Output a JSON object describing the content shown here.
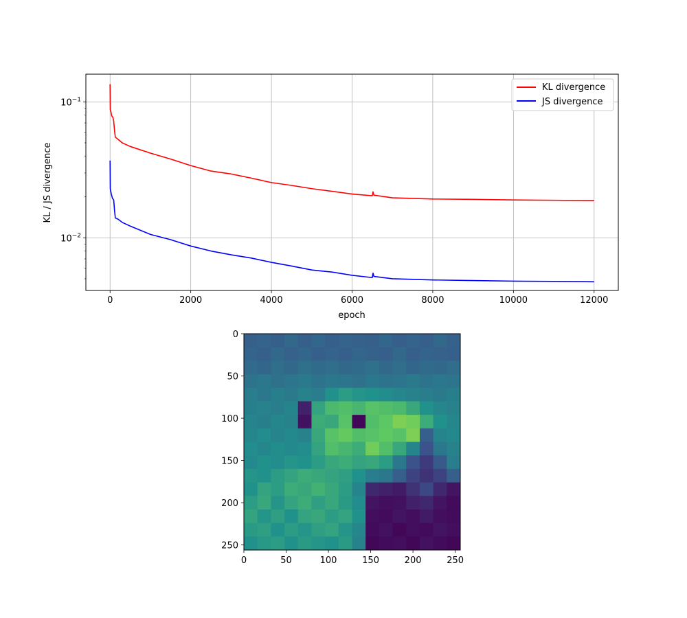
{
  "chart_data": [
    {
      "type": "line",
      "xlabel": "epoch",
      "ylabel": "KL / JS divergence",
      "xlim": [
        -600,
        12600
      ],
      "ylim": [
        0.0041,
        0.16
      ],
      "yscale": "log",
      "grid": true,
      "legend_position": "top-right",
      "x_ticks": [
        0,
        2000,
        4000,
        6000,
        8000,
        10000,
        12000
      ],
      "x_tick_labels": [
        "0",
        "2000",
        "4000",
        "6000",
        "8000",
        "10000",
        "12000"
      ],
      "y_major_ticks": [
        0.01,
        0.1
      ],
      "y_tick_labels": [
        {
          "base": "10",
          "exp": "−2"
        },
        {
          "base": "10",
          "exp": "−1"
        }
      ],
      "series": [
        {
          "name": "KL divergence",
          "color": "#ff0000",
          "points": [
            [
              0,
              0.135
            ],
            [
              5,
              0.088
            ],
            [
              20,
              0.085
            ],
            [
              40,
              0.079
            ],
            [
              70,
              0.077
            ],
            [
              90,
              0.072
            ],
            [
              110,
              0.062
            ],
            [
              130,
              0.055
            ],
            [
              200,
              0.053
            ],
            [
              300,
              0.05
            ],
            [
              500,
              0.047
            ],
            [
              1000,
              0.042
            ],
            [
              1500,
              0.038
            ],
            [
              2000,
              0.034
            ],
            [
              2500,
              0.031
            ],
            [
              3000,
              0.0295
            ],
            [
              3500,
              0.0275
            ],
            [
              4000,
              0.0255
            ],
            [
              4500,
              0.0243
            ],
            [
              5000,
              0.023
            ],
            [
              5500,
              0.022
            ],
            [
              6000,
              0.021
            ],
            [
              6500,
              0.0204
            ],
            [
              6520,
              0.0218
            ],
            [
              6540,
              0.0206
            ],
            [
              7000,
              0.0197
            ],
            [
              8000,
              0.0193
            ],
            [
              9000,
              0.0192
            ],
            [
              10000,
              0.019
            ],
            [
              11000,
              0.0189
            ],
            [
              12000,
              0.0188
            ]
          ]
        },
        {
          "name": "JS divergence",
          "color": "#0000ff",
          "points": [
            [
              0,
              0.037
            ],
            [
              5,
              0.023
            ],
            [
              30,
              0.021
            ],
            [
              60,
              0.0195
            ],
            [
              90,
              0.019
            ],
            [
              110,
              0.016
            ],
            [
              130,
              0.014
            ],
            [
              200,
              0.0137
            ],
            [
              300,
              0.013
            ],
            [
              500,
              0.0122
            ],
            [
              1000,
              0.0106
            ],
            [
              1500,
              0.0097
            ],
            [
              2000,
              0.0087
            ],
            [
              2500,
              0.008
            ],
            [
              3000,
              0.0075
            ],
            [
              3500,
              0.0071
            ],
            [
              4000,
              0.0066
            ],
            [
              4500,
              0.0062
            ],
            [
              5000,
              0.0058
            ],
            [
              5500,
              0.0056
            ],
            [
              6000,
              0.0053
            ],
            [
              6500,
              0.0051
            ],
            [
              6520,
              0.0055
            ],
            [
              6540,
              0.0052
            ],
            [
              7000,
              0.005
            ],
            [
              8000,
              0.0049
            ],
            [
              9000,
              0.00485
            ],
            [
              10000,
              0.0048
            ],
            [
              11000,
              0.00478
            ],
            [
              12000,
              0.00475
            ]
          ]
        }
      ]
    },
    {
      "type": "heatmap",
      "colormap": "viridis",
      "xlim": [
        0,
        256
      ],
      "ylim": [
        256,
        0
      ],
      "x_ticks": [
        0,
        50,
        100,
        150,
        200,
        250
      ],
      "y_ticks": [
        0,
        50,
        100,
        150,
        200,
        250
      ],
      "x_tick_labels": [
        "0",
        "50",
        "100",
        "150",
        "200",
        "250"
      ],
      "y_tick_labels": [
        "0",
        "50",
        "100",
        "150",
        "200",
        "250"
      ],
      "grid_size": 16,
      "values": [
        [
          0.3,
          0.32,
          0.3,
          0.34,
          0.3,
          0.33,
          0.3,
          0.32,
          0.31,
          0.3,
          0.33,
          0.3,
          0.32,
          0.3,
          0.34,
          0.31
        ],
        [
          0.32,
          0.3,
          0.34,
          0.31,
          0.33,
          0.3,
          0.32,
          0.3,
          0.33,
          0.31,
          0.3,
          0.34,
          0.3,
          0.32,
          0.31,
          0.3
        ],
        [
          0.35,
          0.33,
          0.36,
          0.34,
          0.37,
          0.35,
          0.36,
          0.34,
          0.35,
          0.37,
          0.34,
          0.36,
          0.33,
          0.35,
          0.34,
          0.36
        ],
        [
          0.38,
          0.4,
          0.37,
          0.39,
          0.41,
          0.38,
          0.4,
          0.39,
          0.37,
          0.4,
          0.38,
          0.39,
          0.41,
          0.38,
          0.4,
          0.39
        ],
        [
          0.42,
          0.4,
          0.43,
          0.41,
          0.44,
          0.42,
          0.5,
          0.55,
          0.52,
          0.5,
          0.48,
          0.46,
          0.44,
          0.42,
          0.41,
          0.43
        ],
        [
          0.43,
          0.44,
          0.42,
          0.45,
          0.1,
          0.58,
          0.68,
          0.7,
          0.66,
          0.72,
          0.7,
          0.68,
          0.6,
          0.5,
          0.46,
          0.44
        ],
        [
          0.45,
          0.43,
          0.46,
          0.44,
          0.05,
          0.62,
          0.6,
          0.72,
          0.02,
          0.7,
          0.74,
          0.8,
          0.78,
          0.62,
          0.5,
          0.46
        ],
        [
          0.46,
          0.48,
          0.45,
          0.47,
          0.44,
          0.6,
          0.72,
          0.76,
          0.7,
          0.72,
          0.75,
          0.72,
          0.8,
          0.3,
          0.45,
          0.47
        ],
        [
          0.48,
          0.46,
          0.49,
          0.47,
          0.48,
          0.58,
          0.7,
          0.66,
          0.62,
          0.78,
          0.7,
          0.6,
          0.45,
          0.25,
          0.4,
          0.44
        ],
        [
          0.47,
          0.5,
          0.48,
          0.52,
          0.5,
          0.55,
          0.6,
          0.62,
          0.58,
          0.6,
          0.55,
          0.4,
          0.25,
          0.18,
          0.28,
          0.42
        ],
        [
          0.52,
          0.5,
          0.55,
          0.58,
          0.62,
          0.6,
          0.58,
          0.56,
          0.5,
          0.42,
          0.4,
          0.3,
          0.2,
          0.15,
          0.2,
          0.3
        ],
        [
          0.5,
          0.58,
          0.55,
          0.62,
          0.6,
          0.64,
          0.6,
          0.55,
          0.45,
          0.12,
          0.1,
          0.08,
          0.15,
          0.22,
          0.12,
          0.06
        ],
        [
          0.55,
          0.6,
          0.52,
          0.58,
          0.62,
          0.56,
          0.6,
          0.54,
          0.48,
          0.06,
          0.04,
          0.05,
          0.1,
          0.12,
          0.06,
          0.03
        ],
        [
          0.58,
          0.52,
          0.56,
          0.5,
          0.58,
          0.6,
          0.55,
          0.58,
          0.5,
          0.04,
          0.03,
          0.06,
          0.04,
          0.08,
          0.04,
          0.03
        ],
        [
          0.54,
          0.56,
          0.5,
          0.55,
          0.52,
          0.56,
          0.58,
          0.52,
          0.46,
          0.03,
          0.05,
          0.02,
          0.04,
          0.03,
          0.06,
          0.04
        ],
        [
          0.5,
          0.53,
          0.55,
          0.5,
          0.54,
          0.52,
          0.5,
          0.54,
          0.44,
          0.02,
          0.03,
          0.04,
          0.02,
          0.05,
          0.03,
          0.02
        ]
      ]
    }
  ]
}
